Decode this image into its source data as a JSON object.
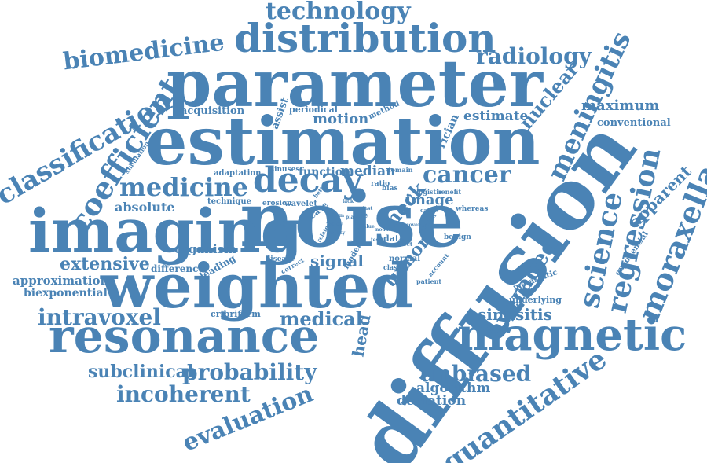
{
  "accent_color": "#4a83b5",
  "words": [
    "diffusion",
    "noise",
    "estimation",
    "parameter",
    "weighted",
    "imaging",
    "resonance",
    "magnetic",
    "distribution",
    "decay",
    "coefficient",
    "classification",
    "quantitative",
    "regression",
    "moraxella",
    "science",
    "meningitis",
    "technology",
    "biomedicine",
    "radiology",
    "medicine",
    "cancer",
    "probability",
    "incoherent",
    "evaluation",
    "intravoxel",
    "unbiased",
    "averaged",
    "nuclear",
    "medical",
    "extensive",
    "subclinical",
    "tumor",
    "neck",
    "head",
    "maximum",
    "signal",
    "sinusitis",
    "apparent",
    "algorithm",
    "deviation",
    "absolute",
    "organism",
    "approximation",
    "biexponential",
    "motion",
    "estimate",
    "image",
    "median",
    "function",
    "conventional",
    "acquisition",
    "periodical",
    "method",
    "rician",
    "assist",
    "difference",
    "leading",
    "cribriform",
    "underlying",
    "metastatic",
    "exponential",
    "technique",
    "adaptation",
    "sinuses",
    "erosion",
    "wavelet",
    "case",
    "life",
    "data",
    "normal",
    "classify",
    "disease",
    "model",
    "logistic",
    "benefit",
    "whereas",
    "benign",
    "simulation",
    "bias",
    "ratio",
    "domain",
    "patient",
    "account",
    "correct",
    "better",
    "related",
    "form",
    "study",
    "ability",
    "closed",
    "value",
    "cause",
    "effect",
    "clinical",
    "plain",
    "nodule",
    "recover",
    "last",
    "lack",
    "test",
    "free"
  ]
}
